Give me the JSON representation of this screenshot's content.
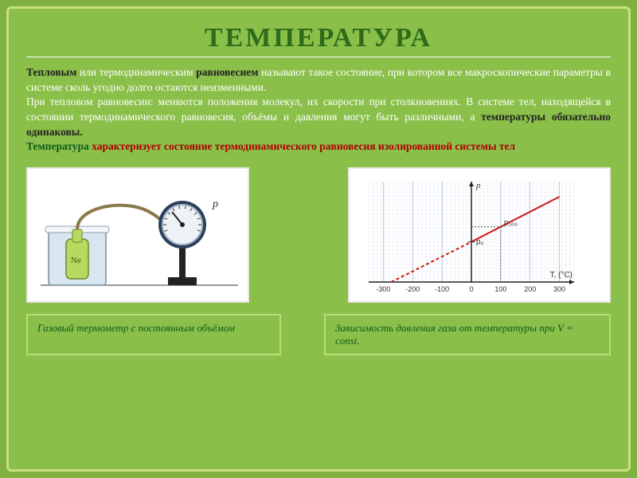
{
  "title": {
    "text": "ТЕМПЕРАТУРА",
    "color": "#2e6b1a",
    "fontsize": 34
  },
  "paragraph": {
    "p1a": "Тепловым ",
    "p1b": "или термодинамическим",
    "p1c": " равновесием ",
    "p1d": "называют такое состояние, при котором все макроскопические параметры в системе сколь угодно долго остаются неизменными.",
    "p2a": "При тепловом равновесии: меняются положения молекул, их скорости при столкновениях. В системе тел, находящейся в состоянии термодинамического равновесия, объёмы и давления могут быть различными, а ",
    "p2b": "температуры обязательно одинаковы.",
    "p3a": "Температура",
    "p3b": "       характеризует состояние термодинамического равновесия изолированной системы тел"
  },
  "thermometer_fig": {
    "p_label": "p",
    "ne_label": "Ne",
    "beaker_fill": "#d9e6ef",
    "beaker_stroke": "#8fa5b0",
    "flask_fill": "#b8d85f",
    "flask_stroke": "#6c8a2a",
    "tube_color": "#8a7a4a",
    "gauge_body": "#2d3f5a",
    "gauge_face": "#eef1f6",
    "gauge_rim": "#aab5c6",
    "stand_color": "#222"
  },
  "chart": {
    "type": "line",
    "grid_color": "#dfe6f2",
    "grid_major": "#a8b5d0",
    "axis_color": "#222",
    "line_color": "#d01515",
    "line_dash_left": [
      4,
      3
    ],
    "xlabel": "T, (°C)",
    "ylabel": "p",
    "p0_label": "p₀",
    "p100_label": "p₁₀₀",
    "x_ticks": [
      -300,
      -200,
      -100,
      0,
      100,
      200,
      300
    ],
    "x_range": [
      -350,
      350
    ],
    "y_range": [
      0,
      1
    ],
    "intercept_x": -273,
    "p0_at_x": 0,
    "p100_at_x": 100,
    "p0_y": 0.4,
    "p100_y": 0.55,
    "label_fontsize": 9
  },
  "captions": {
    "left": "Газовый термометр с постоянным объёмом",
    "right_a": "Зависимость давления газа от температуры при ",
    "right_i": "V",
    "right_b": " = const."
  },
  "colors": {
    "bg": "#8abf4a",
    "frame": "#c8e080",
    "body_text": "#ffffff",
    "green": "#0c5b1a",
    "red": "#b00000"
  }
}
